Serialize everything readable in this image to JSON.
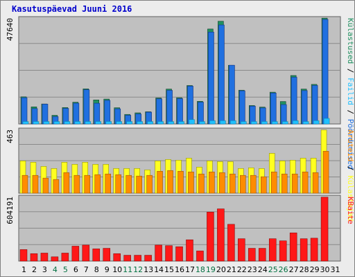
{
  "chart_data": {
    "type": "bar",
    "title": "Kasutuspäevad Juuni 2016",
    "categories": [
      "1",
      "2",
      "3",
      "4",
      "5",
      "6",
      "7",
      "8",
      "9",
      "10",
      "11",
      "12",
      "13",
      "14",
      "15",
      "16",
      "17",
      "18",
      "19",
      "20",
      "21",
      "22",
      "23",
      "24",
      "25",
      "26",
      "27",
      "28",
      "29",
      "30",
      "31"
    ],
    "weekend_days": [
      "4",
      "5",
      "11",
      "12",
      "18",
      "19",
      "25",
      "26"
    ],
    "colors": {
      "title": "#0000cc",
      "weekday": "#000000",
      "weekend": "#007040",
      "panel_bg": "#c0c0c0",
      "frame_bg": "#ececec",
      "pages": "#2070e0",
      "pages_dark": "#1a3c8a",
      "files": "#20c0ff",
      "visits": "#209060",
      "hits": "#ffff20",
      "visitors": "#ff8c00",
      "kbytes": "#ff1818"
    },
    "panels": [
      {
        "name": "top",
        "ymax_label": "47640",
        "ylim": [
          0,
          47640
        ],
        "legend": [
          {
            "text": "Külastused",
            "color": "#209060"
          },
          {
            "text": " / ",
            "color": "#000000"
          },
          {
            "text": "Failid",
            "color": "#20c0ff"
          },
          {
            "text": " / ",
            "color": "#000000"
          },
          {
            "text": "Pöördumised",
            "color": "#2070e0"
          }
        ],
        "series": [
          {
            "name": "Külastused",
            "values": [
              12200,
              7700,
              9000,
              3900,
              7400,
              9800,
              15800,
              10800,
              11200,
              7300,
              4300,
              5000,
              5500,
              11700,
              15700,
              11800,
              17300,
              10200,
              42700,
              46200,
              26400,
              15200,
              8300,
              7600,
              14300,
              10100,
              21800,
              15700,
              17800,
              47600,
              0
            ]
          },
          {
            "name": "Pöördumised",
            "values": [
              11800,
              6900,
              8900,
              3300,
              7000,
              9300,
              15400,
              9300,
              10600,
              6800,
              3900,
              4500,
              5300,
              11300,
              15100,
              11400,
              17000,
              9800,
              41300,
              44500,
              26400,
              14900,
              8000,
              7200,
              13900,
              8700,
              21000,
              15000,
              17300,
              47000,
              0
            ]
          },
          {
            "name": "Failid",
            "values": [
              1100,
              1100,
              1100,
              1100,
              1100,
              1100,
              1100,
              1100,
              1100,
              1100,
              1100,
              1100,
              1100,
              1100,
              1100,
              1100,
              2000,
              1100,
              1500,
              1500,
              1500,
              1100,
              1100,
              1100,
              1100,
              1100,
              1500,
              1100,
              1500,
              2500,
              0
            ]
          }
        ]
      },
      {
        "name": "mid",
        "ymax_label": "463",
        "ylim": [
          0,
          463
        ],
        "legend": [
          {
            "text": "Aruteid",
            "color": "#ff8c00"
          },
          {
            "text": " / ",
            "color": "#000000"
          },
          {
            "text": "Külastajad",
            "color": "#ffff20"
          }
        ],
        "series": [
          {
            "name": "Külastajad",
            "values": [
              235,
              225,
              195,
              180,
              225,
              210,
              225,
              210,
              210,
              180,
              180,
              180,
              170,
              235,
              245,
              240,
              255,
              190,
              235,
              230,
              230,
              180,
              185,
              180,
              290,
              235,
              240,
              255,
              255,
              460,
              0
            ]
          },
          {
            "name": "Aruteid",
            "values": [
              130,
              130,
              110,
              100,
              150,
              130,
              130,
              135,
              140,
              135,
              130,
              125,
              130,
              160,
              165,
              160,
              155,
              140,
              155,
              150,
              140,
              130,
              130,
              120,
              155,
              140,
              140,
              155,
              150,
              305,
              0
            ]
          }
        ]
      },
      {
        "name": "bottom",
        "ymax_label": "604191",
        "ylim": [
          0,
          604191
        ],
        "legend": [
          {
            "text": "KBaite",
            "color": "#ff1818"
          }
        ],
        "series": [
          {
            "name": "KBaite",
            "values": [
              108000,
              70000,
              75000,
              40000,
              75000,
              140000,
              150000,
              115000,
              120000,
              70000,
              55000,
              55000,
              55000,
              150000,
              145000,
              135000,
              200000,
              95000,
              460000,
              490000,
              345000,
              210000,
              120000,
              120000,
              210000,
              190000,
              265000,
              210000,
              215000,
              600000,
              0
            ]
          }
        ]
      }
    ]
  }
}
